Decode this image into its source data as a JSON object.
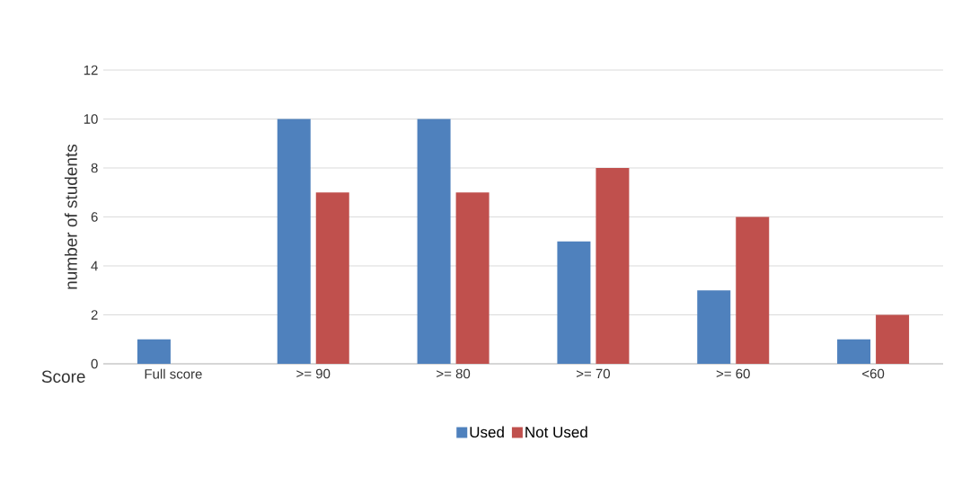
{
  "chart_data": {
    "type": "bar",
    "xlabel": "Score",
    "ylabel": "number of students",
    "categories": [
      "Full score",
      ">= 90",
      ">= 80",
      ">= 70",
      ">= 60",
      "<60"
    ],
    "series": [
      {
        "name": "Used",
        "color": "#4f81bd",
        "values": [
          1,
          10,
          10,
          5,
          3,
          1
        ]
      },
      {
        "name": "Not Used",
        "color": "#c0504d",
        "values": [
          0,
          7,
          7,
          8,
          6,
          2
        ]
      }
    ],
    "ylim": [
      0,
      12
    ],
    "yticks": [
      0,
      2,
      4,
      6,
      8,
      10,
      12
    ],
    "grid": "y",
    "legend": "bottom"
  }
}
